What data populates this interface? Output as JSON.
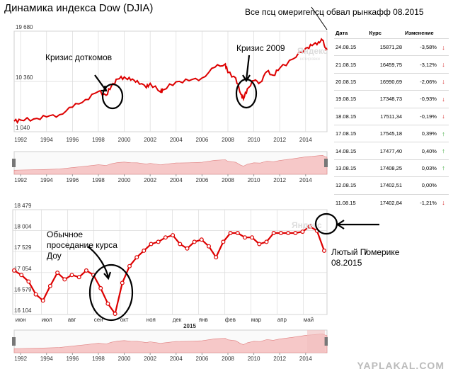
{
  "title": "Динамика индекса Dow (DJIA)",
  "top_annotation": "Все псц омеригепсц обвал рынкафф 08.2015",
  "annotations": {
    "dotcom": "Кризис доткомов",
    "crisis2009": "Кризис 2009",
    "normal_dip_line1": "Обычное",
    "normal_dip_line2": "проседание курса",
    "normal_dip_line3": "Доу",
    "fierce_line1": "Лютый П̸омерике",
    "fierce_line2": "08.2015"
  },
  "yandex_logo": "Яндекс",
  "yandex_sub": "котировки",
  "watermark": "YAPLAKAL.COM",
  "table": {
    "headers": [
      "Дата",
      "Курс",
      "Изменение"
    ],
    "rows": [
      {
        "date": "24.08.15",
        "rate": "15871,28",
        "change": "-3,58%",
        "dir": "down"
      },
      {
        "date": "21.08.15",
        "rate": "16459,75",
        "change": "-3,12%",
        "dir": "down"
      },
      {
        "date": "20.08.15",
        "rate": "16990,69",
        "change": "-2,06%",
        "dir": "down"
      },
      {
        "date": "19.08.15",
        "rate": "17348,73",
        "change": "-0,93%",
        "dir": "down"
      },
      {
        "date": "18.08.15",
        "rate": "17511,34",
        "change": "-0,19%",
        "dir": "down"
      },
      {
        "date": "17.08.15",
        "rate": "17545,18",
        "change": "0,39%",
        "dir": "up"
      },
      {
        "date": "14.08.15",
        "rate": "17477,40",
        "change": "0,40%",
        "dir": "up"
      },
      {
        "date": "13.08.15",
        "rate": "17408,25",
        "change": "0,03%",
        "dir": "up"
      },
      {
        "date": "12.08.15",
        "rate": "17402,51",
        "change": "0,00%",
        "dir": "none"
      },
      {
        "date": "11.08.15",
        "rate": "17402,84",
        "change": "-1,21%",
        "dir": "down"
      }
    ]
  },
  "colors": {
    "line": "#dd0000",
    "nav_fill": "#f6c8c8",
    "grid": "#d9d9d9",
    "circle": "#000000"
  },
  "chart_data": [
    {
      "type": "line",
      "title": "Динамика индекса Dow (DJIA)",
      "y_tick_labels": [
        "19 680",
        "10 360",
        "1 040"
      ],
      "y_ticks": [
        19680,
        10360,
        1040
      ],
      "ylim": [
        1040,
        19680
      ],
      "x_tick_labels": [
        "1992",
        "1994",
        "1996",
        "1998",
        "2000",
        "2002",
        "2004",
        "2006",
        "2008",
        "2010",
        "2012",
        "2014"
      ],
      "xlim": [
        1991.5,
        2015.65
      ],
      "grid": true,
      "x": [
        1991.5,
        1992,
        1993,
        1994,
        1995,
        1996,
        1997,
        1998,
        1998.6,
        1999,
        1999.5,
        2000,
        2000.5,
        2001,
        2001.7,
        2002,
        2002.8,
        2003,
        2004,
        2005,
        2006,
        2007,
        2007.8,
        2008,
        2008.6,
        2009,
        2009.2,
        2009.5,
        2010,
        2010.5,
        2011,
        2011.5,
        2012,
        2013,
        2014,
        2014.5,
        2015,
        2015.3,
        2015.55,
        2015.65
      ],
      "y": [
        3000,
        3200,
        3400,
        3800,
        4200,
        5600,
        7000,
        8500,
        7800,
        9500,
        10800,
        11200,
        10600,
        10500,
        9200,
        10000,
        8400,
        8800,
        10300,
        10500,
        11000,
        13000,
        13600,
        12000,
        11000,
        8000,
        7100,
        9000,
        10500,
        10200,
        12200,
        11500,
        12800,
        14500,
        16500,
        17000,
        17700,
        18000,
        16500,
        16200
      ]
    },
    {
      "type": "line",
      "y_tick_labels": [
        "18 479",
        "18 004",
        "17 529",
        "17 054",
        "16 579",
        "16 104"
      ],
      "y_ticks": [
        18479,
        18004,
        17529,
        17054,
        16579,
        16104
      ],
      "ylim": [
        16104,
        18479
      ],
      "x_tick_labels": [
        "июн",
        "июл",
        "авг",
        "сен",
        "окт",
        "ноя",
        "дек",
        "янв",
        "фев",
        "мар",
        "апр",
        "май"
      ],
      "x_label": "2015",
      "grid": true,
      "values": [
        17100,
        17000,
        16850,
        16560,
        16420,
        16750,
        17050,
        16900,
        17000,
        16950,
        17100,
        17000,
        16700,
        16350,
        16120,
        16820,
        17200,
        17400,
        17550,
        17700,
        17750,
        17850,
        17900,
        17700,
        17600,
        17750,
        17800,
        17650,
        17400,
        17750,
        17950,
        17950,
        17850,
        17850,
        17700,
        17750,
        17950,
        17950,
        17950,
        17950,
        17980,
        18100,
        18000,
        17550
      ]
    }
  ]
}
